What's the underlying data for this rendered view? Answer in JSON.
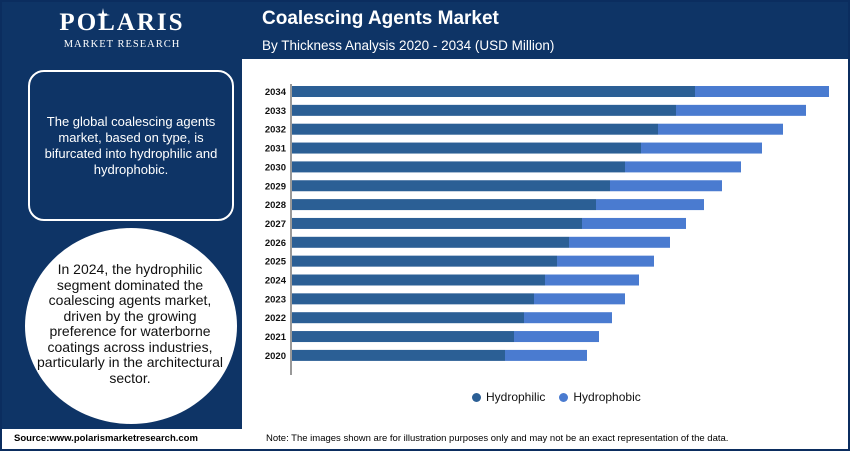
{
  "brand": {
    "name": "POLARIS",
    "tagline": "MARKET RESEARCH"
  },
  "header": {
    "title": "Coalescing Agents Market",
    "subtitle": "By Thickness Analysis 2020 - 2034 (USD Million)"
  },
  "sidebar": {
    "info_text": "The global coalescing agents market, based on type, is bifurcated into hydrophilic and hydrophobic.",
    "highlight_text": "In 2024, the hydrophilic segment dominated the coalescing agents market, driven by the growing preference for waterborne coatings across industries, particularly in the architectural sector."
  },
  "footer": {
    "source": "Source:www.polarismarketresearch.com",
    "note": "Note: The images shown are for illustration purposes only and may not be an exact representation of the data."
  },
  "colors": {
    "navy": "#0e3466",
    "hydrophilic": "#2b5f95",
    "hydrophobic": "#4a7bd0"
  },
  "chart_data": {
    "type": "bar",
    "orientation": "horizontal",
    "stacked": true,
    "title": "Coalescing Agents Market",
    "subtitle": "By Thickness Analysis 2020 - 2034 (USD Million)",
    "categories": [
      "2034",
      "2033",
      "2032",
      "2031",
      "2030",
      "2029",
      "2028",
      "2027",
      "2026",
      "2025",
      "2024",
      "2023",
      "2022",
      "2021",
      "2020"
    ],
    "series": [
      {
        "name": "Hydrophilic",
        "color": "#2b5f95",
        "values": [
          403,
          384,
          366,
          349,
          333,
          318,
          304,
          290,
          277,
          265,
          253,
          242,
          232,
          222,
          213
        ]
      },
      {
        "name": "Hydrophobic",
        "color": "#4a7bd0",
        "values": [
          134,
          130,
          125,
          121,
          116,
          112,
          108,
          104,
          101,
          97,
          94,
          91,
          88,
          85,
          82
        ]
      }
    ],
    "xlabel": "",
    "ylabel": "",
    "axis_labels_shown": false,
    "grid": false,
    "legend": "bottom"
  }
}
